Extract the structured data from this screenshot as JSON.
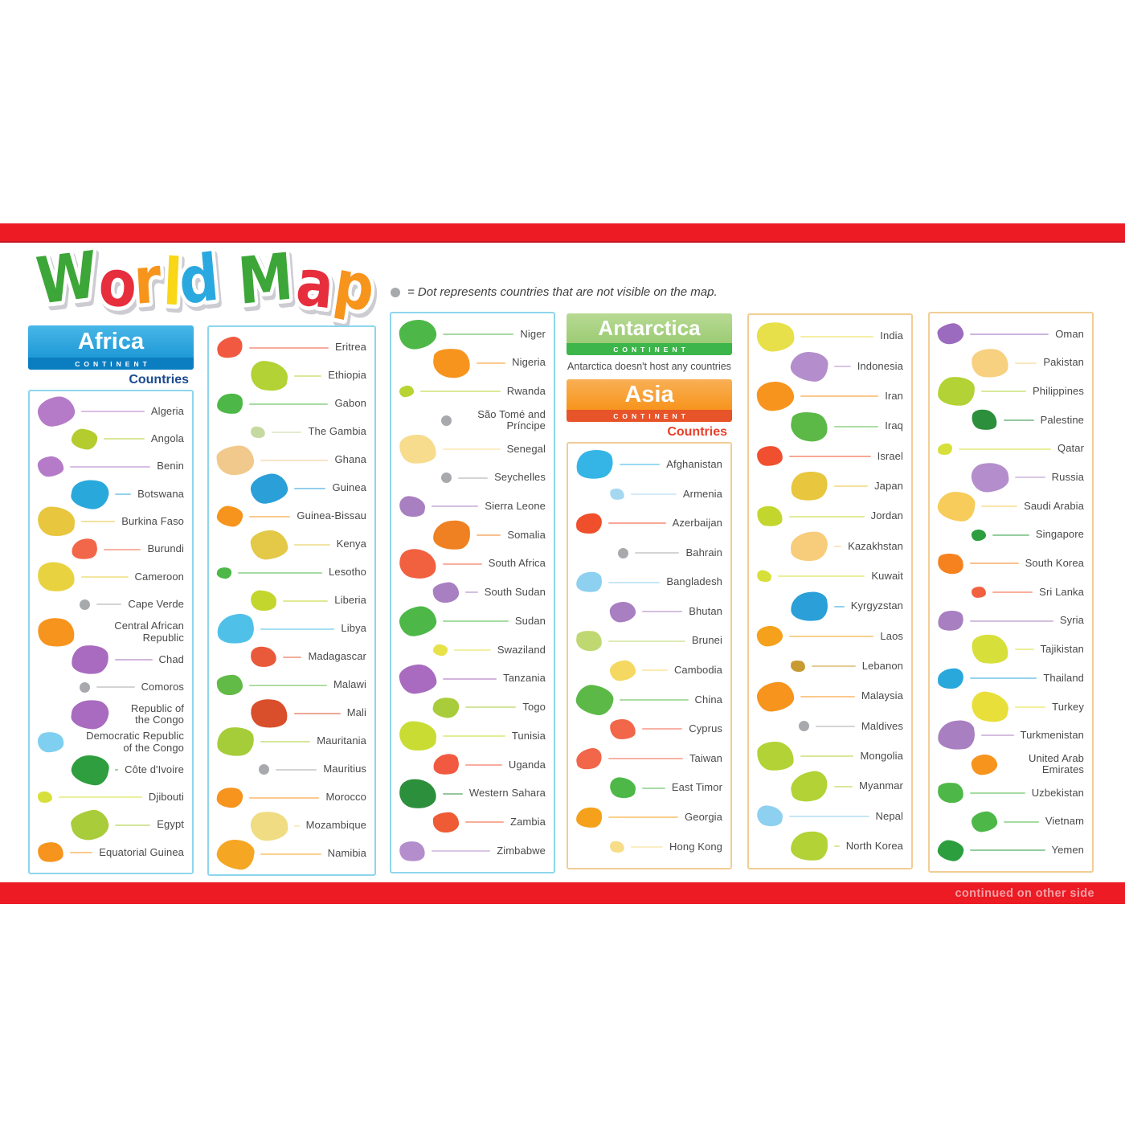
{
  "poster": {
    "title": {
      "text": "World Map",
      "letters": [
        {
          "ch": "W",
          "color": "#3DA639"
        },
        {
          "ch": "o",
          "color": "#E62E3E"
        },
        {
          "ch": "r",
          "color": "#F7941D"
        },
        {
          "ch": "l",
          "color": "#F9D616"
        },
        {
          "ch": "d",
          "color": "#29A8E0"
        },
        {
          "ch": " ",
          "color": "#FFFFFF"
        },
        {
          "ch": "M",
          "color": "#3DA639"
        },
        {
          "ch": "a",
          "color": "#E62E3E"
        },
        {
          "ch": "p",
          "color": "#F7941D"
        }
      ]
    },
    "legend": {
      "dot_color": "#A7A9AC",
      "text": "= Dot represents countries that are not visible on the map."
    },
    "footer": {
      "text": "continued on other side"
    },
    "colors": {
      "bar_red": "#EC1B24",
      "africa_header_top": "#49B7E8",
      "africa_header_bottom": "#1E99D6",
      "africa_band": "#0B7EC2",
      "africa_border": "#8ED6EC",
      "africa_countries_label": "#1B4A8F",
      "antarctica_header": "#A9D187",
      "antarctica_band": "#3CB54A",
      "asia_header_top": "#F9B055",
      "asia_header_bottom": "#F7941D",
      "asia_band": "#E8542A",
      "asia_border": "#F2CD96",
      "asia_countries_label": "#E8402A",
      "label_text": "#4A4A4C",
      "hidden_country_dot": "#A7A9AC",
      "footer_text": "#F59FA5"
    }
  },
  "continents": {
    "africa": {
      "name": "Africa",
      "continent_label": "CONTINENT",
      "countries_label": "Countries"
    },
    "antarctica": {
      "name": "Antarctica",
      "continent_label": "CONTINENT",
      "note": "Antarctica doesn't host any countries"
    },
    "asia": {
      "name": "Asia",
      "continent_label": "CONTINENT",
      "countries_label": "Countries"
    }
  },
  "columns": [
    {
      "id": "africa-1",
      "continent": "Africa",
      "countries": [
        {
          "name": "Algeria",
          "color": "#B57BC8",
          "size": 3
        },
        {
          "name": "Angola",
          "color": "#B5CC2E",
          "size": 2
        },
        {
          "name": "Benin",
          "color": "#B57BC8",
          "size": 2
        },
        {
          "name": "Botswana",
          "color": "#29A8DC",
          "size": 3
        },
        {
          "name": "Burkina Faso",
          "color": "#E8C63E",
          "size": 3
        },
        {
          "name": "Burundi",
          "color": "#F26649",
          "size": 2
        },
        {
          "name": "Cameroon",
          "color": "#E8D23F",
          "size": 3
        },
        {
          "name": "Cape Verde",
          "dot": true
        },
        {
          "name": "Central African Republic",
          "color": "#F7941D",
          "size": 3
        },
        {
          "name": "Chad",
          "color": "#A86BBF",
          "size": 3
        },
        {
          "name": "Comoros",
          "dot": true
        },
        {
          "name": "Republic of the Congo",
          "color": "#A86BBF",
          "size": 3
        },
        {
          "name": "Democratic Republic of the Congo",
          "color": "#7FD0F0",
          "size": 2
        },
        {
          "name": "Côte d'Ivoire",
          "color": "#2E9E3E",
          "size": 3
        },
        {
          "name": "Djibouti",
          "color": "#D7DF3A",
          "size": 1
        },
        {
          "name": "Egypt",
          "color": "#A8CC3A",
          "size": 3
        },
        {
          "name": "Equatorial Guinea",
          "color": "#F7941D",
          "size": 2
        }
      ]
    },
    {
      "id": "africa-2",
      "continent": "Africa",
      "countries": [
        {
          "name": "Eritrea",
          "color": "#F15A40",
          "size": 2
        },
        {
          "name": "Ethiopia",
          "color": "#B2D235",
          "size": 3
        },
        {
          "name": "Gabon",
          "color": "#4DB848",
          "size": 2
        },
        {
          "name": "The Gambia",
          "color": "#C6D9A0",
          "size": 1
        },
        {
          "name": "Ghana",
          "color": "#F2C98C",
          "size": 3
        },
        {
          "name": "Guinea",
          "color": "#2A9FD8",
          "size": 3
        },
        {
          "name": "Guinea-Bissau",
          "color": "#F7941D",
          "size": 2
        },
        {
          "name": "Kenya",
          "color": "#E3C947",
          "size": 3
        },
        {
          "name": "Lesotho",
          "color": "#4DB848",
          "size": 1
        },
        {
          "name": "Liberia",
          "color": "#C3D62E",
          "size": 2
        },
        {
          "name": "Libya",
          "color": "#4FC1E9",
          "size": 3
        },
        {
          "name": "Madagascar",
          "color": "#E85A3A",
          "size": 2
        },
        {
          "name": "Malawi",
          "color": "#62BB46",
          "size": 2
        },
        {
          "name": "Mali",
          "color": "#D94F2B",
          "size": 3
        },
        {
          "name": "Mauritania",
          "color": "#A5CD39",
          "size": 3
        },
        {
          "name": "Mauritius",
          "dot": true
        },
        {
          "name": "Morocco",
          "color": "#F7941D",
          "size": 2
        },
        {
          "name": "Mozambique",
          "color": "#F0DC82",
          "size": 3
        },
        {
          "name": "Namibia",
          "color": "#F5A623",
          "size": 3
        }
      ]
    },
    {
      "id": "africa-3",
      "continent": "Africa",
      "countries": [
        {
          "name": "Niger",
          "color": "#4DB848",
          "size": 3
        },
        {
          "name": "Nigeria",
          "color": "#F7941D",
          "size": 3
        },
        {
          "name": "Rwanda",
          "color": "#B8D432",
          "size": 1
        },
        {
          "name": "São Tomé and Príncipe",
          "dot": true
        },
        {
          "name": "Senegal",
          "color": "#F7DC8E",
          "size": 3
        },
        {
          "name": "Seychelles",
          "dot": true
        },
        {
          "name": "Sierra Leone",
          "color": "#A87FC0",
          "size": 2
        },
        {
          "name": "Somalia",
          "color": "#EF8122",
          "size": 3
        },
        {
          "name": "South Africa",
          "color": "#F1603F",
          "size": 3
        },
        {
          "name": "South Sudan",
          "color": "#A87FC0",
          "size": 2
        },
        {
          "name": "Sudan",
          "color": "#4DB848",
          "size": 3
        },
        {
          "name": "Swaziland",
          "color": "#E8E24A",
          "size": 1
        },
        {
          "name": "Tanzania",
          "color": "#A86BBF",
          "size": 3
        },
        {
          "name": "Togo",
          "color": "#A8CC3A",
          "size": 2
        },
        {
          "name": "Tunisia",
          "color": "#C9DC34",
          "size": 3
        },
        {
          "name": "Uganda",
          "color": "#F15A40",
          "size": 2
        },
        {
          "name": "Western Sahara",
          "color": "#2C8F3C",
          "size": 3
        },
        {
          "name": "Zambia",
          "color": "#EF5B34",
          "size": 2
        },
        {
          "name": "Zimbabwe",
          "color": "#B48ECC",
          "size": 2
        }
      ]
    },
    {
      "id": "asia-1",
      "continent": "Asia",
      "countries": [
        {
          "name": "Afghanistan",
          "color": "#35B5E5",
          "size": 3
        },
        {
          "name": "Armenia",
          "color": "#A5D8F0",
          "size": 1
        },
        {
          "name": "Azerbaijan",
          "color": "#EF4F2B",
          "size": 2
        },
        {
          "name": "Bahrain",
          "dot": true
        },
        {
          "name": "Bangladesh",
          "color": "#8ED0F0",
          "size": 2
        },
        {
          "name": "Bhutan",
          "color": "#A87FC0",
          "size": 2
        },
        {
          "name": "Brunei",
          "color": "#C0D872",
          "size": 2
        },
        {
          "name": "Cambodia",
          "color": "#F5D861",
          "size": 2
        },
        {
          "name": "China",
          "color": "#5CB947",
          "size": 3
        },
        {
          "name": "Cyprus",
          "color": "#F26649",
          "size": 2
        },
        {
          "name": "Taiwan",
          "color": "#F26649",
          "size": 2
        },
        {
          "name": "East Timor",
          "color": "#4DB848",
          "size": 2
        },
        {
          "name": "Georgia",
          "color": "#F5A11C",
          "size": 2
        },
        {
          "name": "Hong Kong",
          "color": "#F7DD88",
          "size": 1
        }
      ]
    },
    {
      "id": "asia-2",
      "continent": "Asia",
      "countries": [
        {
          "name": "India",
          "color": "#E8E04A",
          "size": 3
        },
        {
          "name": "Indonesia",
          "color": "#B48ECC",
          "size": 3
        },
        {
          "name": "Iran",
          "color": "#F7941D",
          "size": 3
        },
        {
          "name": "Iraq",
          "color": "#5CB947",
          "size": 3
        },
        {
          "name": "Israel",
          "color": "#F04F30",
          "size": 2
        },
        {
          "name": "Japan",
          "color": "#E8C63E",
          "size": 3
        },
        {
          "name": "Jordan",
          "color": "#C3D62E",
          "size": 2
        },
        {
          "name": "Kazakhstan",
          "color": "#F7CC7A",
          "size": 3
        },
        {
          "name": "Kuwait",
          "color": "#D7DF3A",
          "size": 1
        },
        {
          "name": "Kyrgyzstan",
          "color": "#2A9FD8",
          "size": 3
        },
        {
          "name": "Laos",
          "color": "#F5A11C",
          "size": 2
        },
        {
          "name": "Lebanon",
          "color": "#C89A32",
          "size": 1
        },
        {
          "name": "Malaysia",
          "color": "#F7941D",
          "size": 3
        },
        {
          "name": "Maldives",
          "dot": true
        },
        {
          "name": "Mongolia",
          "color": "#B2D235",
          "size": 3
        },
        {
          "name": "Myanmar",
          "color": "#B2D235",
          "size": 3
        },
        {
          "name": "Nepal",
          "color": "#8ED0F0",
          "size": 2
        },
        {
          "name": "North Korea",
          "color": "#B2D235",
          "size": 3
        }
      ]
    },
    {
      "id": "asia-3",
      "continent": "Asia",
      "countries": [
        {
          "name": "Oman",
          "color": "#9B6BBF",
          "size": 2
        },
        {
          "name": "Pakistan",
          "color": "#F7D080",
          "size": 3
        },
        {
          "name": "Philippines",
          "color": "#B2D235",
          "size": 3
        },
        {
          "name": "Palestine",
          "color": "#2C8F3C",
          "size": 2
        },
        {
          "name": "Qatar",
          "color": "#D7DF3A",
          "size": 1
        },
        {
          "name": "Russia",
          "color": "#B48ECC",
          "size": 3
        },
        {
          "name": "Saudi Arabia",
          "color": "#F7CC5A",
          "size": 3
        },
        {
          "name": "Singapore",
          "color": "#2C9E3E",
          "size": 1
        },
        {
          "name": "South Korea",
          "color": "#F5821F",
          "size": 2
        },
        {
          "name": "Sri Lanka",
          "color": "#F1603F",
          "size": 1
        },
        {
          "name": "Syria",
          "color": "#A87FC0",
          "size": 2
        },
        {
          "name": "Tajikistan",
          "color": "#D7DF3A",
          "size": 3
        },
        {
          "name": "Thailand",
          "color": "#29A8DC",
          "size": 2
        },
        {
          "name": "Turkey",
          "color": "#E8DF3A",
          "size": 3
        },
        {
          "name": "Turkmenistan",
          "color": "#A87FC0",
          "size": 3
        },
        {
          "name": "United Arab Emirates",
          "color": "#F7941D",
          "size": 2
        },
        {
          "name": "Uzbekistan",
          "color": "#4DB848",
          "size": 2
        },
        {
          "name": "Vietnam",
          "color": "#4DB848",
          "size": 2
        },
        {
          "name": "Yemen",
          "color": "#2C9E3E",
          "size": 2
        }
      ]
    }
  ]
}
